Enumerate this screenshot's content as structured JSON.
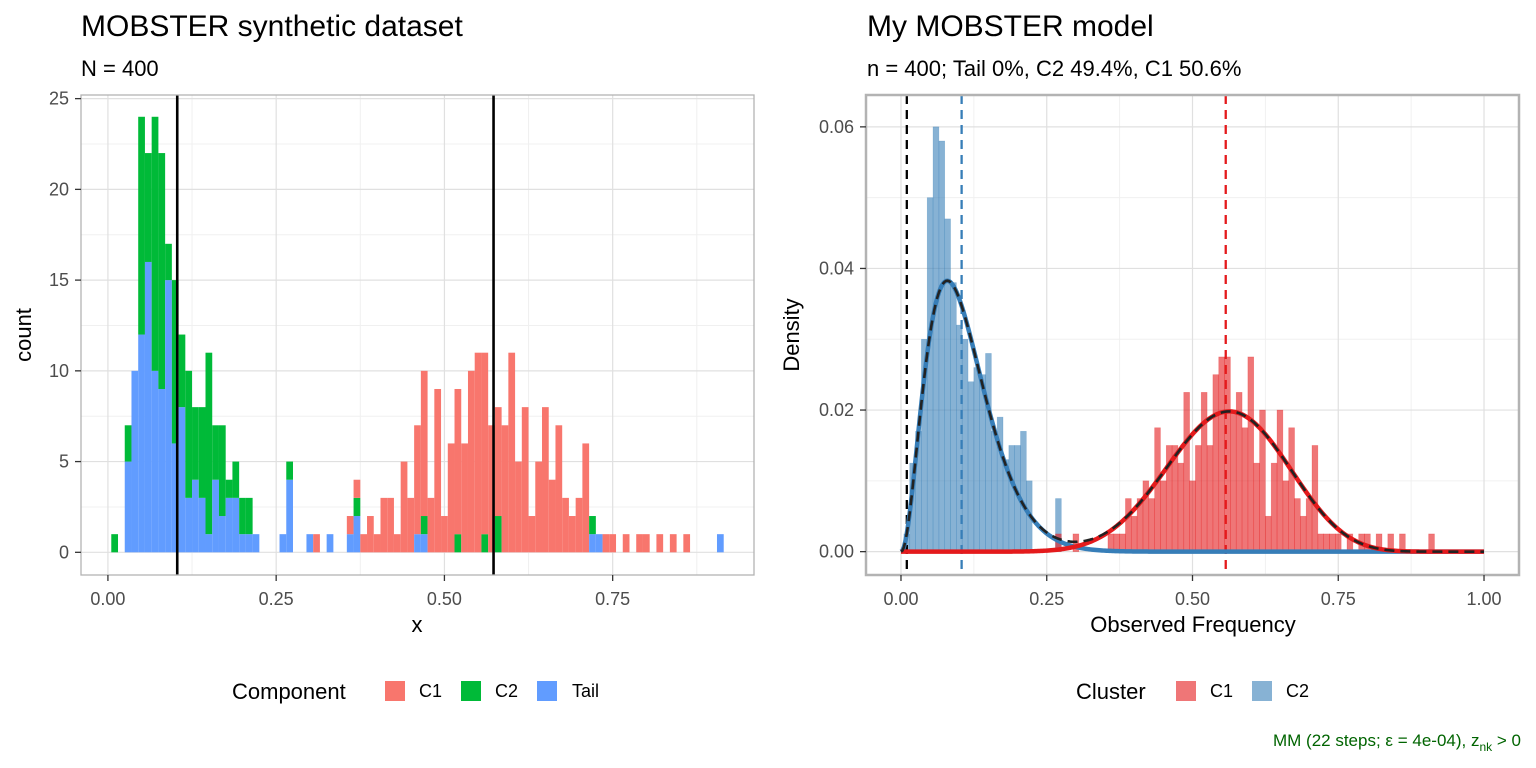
{
  "chart_data": [
    {
      "type": "bar",
      "title": "MOBSTER synthetic dataset",
      "subtitle": "N = 400",
      "xlabel": "x",
      "ylabel": "count",
      "xlim": [
        -0.04,
        0.96
      ],
      "ylim": [
        -1.25,
        25.2
      ],
      "x_ticks": [
        0,
        0.25,
        0.5,
        0.75
      ],
      "x_tick_labels": [
        "0.00",
        "0.25",
        "0.50",
        "0.75"
      ],
      "y_ticks": [
        0,
        5,
        10,
        15,
        20,
        25
      ],
      "y_tick_labels": [
        "0",
        "5",
        "10",
        "15",
        "20",
        "25"
      ],
      "grid": true,
      "stacked": true,
      "bin_width": 0.01,
      "legend": {
        "title": "Component",
        "position": "bottom",
        "entries": [
          {
            "label": "C1",
            "color": "#F8766D"
          },
          {
            "label": "C2",
            "color": "#00BA38"
          },
          {
            "label": "Tail",
            "color": "#619CFF"
          }
        ]
      },
      "vlines": [
        {
          "x": 0.103,
          "color": "#000000",
          "style": "solid"
        },
        {
          "x": 0.573,
          "color": "#000000",
          "style": "solid"
        }
      ],
      "bins_x": [
        0.01,
        0.03,
        0.04,
        0.05,
        0.06,
        0.07,
        0.08,
        0.09,
        0.1,
        0.11,
        0.12,
        0.13,
        0.14,
        0.15,
        0.16,
        0.17,
        0.18,
        0.19,
        0.2,
        0.21,
        0.22,
        0.26,
        0.27,
        0.3,
        0.31,
        0.33,
        0.36,
        0.37,
        0.38,
        0.39,
        0.4,
        0.41,
        0.42,
        0.43,
        0.44,
        0.45,
        0.46,
        0.47,
        0.48,
        0.49,
        0.5,
        0.51,
        0.52,
        0.53,
        0.54,
        0.55,
        0.56,
        0.57,
        0.58,
        0.59,
        0.6,
        0.61,
        0.62,
        0.63,
        0.64,
        0.65,
        0.66,
        0.67,
        0.68,
        0.69,
        0.7,
        0.71,
        0.72,
        0.73,
        0.74,
        0.75,
        0.77,
        0.79,
        0.8,
        0.82,
        0.84,
        0.86,
        0.91
      ],
      "series": [
        {
          "name": "Tail",
          "color": "#619CFF",
          "values": [
            0,
            5,
            10,
            12,
            16,
            10,
            9,
            15,
            6,
            8,
            3,
            4,
            3,
            1,
            4,
            2,
            3,
            3,
            1,
            1,
            1,
            1,
            4,
            1,
            0,
            1,
            1,
            2,
            0,
            0,
            0,
            0,
            0,
            0,
            0,
            0,
            1,
            1,
            0,
            0,
            0,
            0,
            0,
            0,
            0,
            0,
            0,
            0,
            0,
            0,
            0,
            0,
            0,
            0,
            0,
            0,
            0,
            0,
            0,
            0,
            0,
            0,
            1,
            1,
            0,
            0,
            0,
            0,
            0,
            0,
            0,
            0,
            1
          ]
        },
        {
          "name": "C2",
          "color": "#00BA38",
          "values": [
            1,
            2,
            0,
            12,
            6,
            14,
            13,
            2,
            9,
            4,
            7,
            4,
            5,
            10,
            3,
            5,
            1,
            2,
            2,
            2,
            0,
            0,
            1,
            0,
            0,
            0,
            0,
            1,
            0,
            0,
            0,
            0,
            0,
            0,
            0,
            0,
            0,
            1,
            0,
            0,
            0,
            0,
            1,
            0,
            0,
            0,
            1,
            0,
            2,
            0,
            0,
            0,
            0,
            0,
            0,
            0,
            0,
            0,
            0,
            0,
            0,
            0,
            1,
            0,
            0,
            0,
            0,
            0,
            0,
            0,
            0,
            0,
            0
          ]
        },
        {
          "name": "C1",
          "color": "#F8766D",
          "values": [
            0,
            0,
            0,
            0,
            0,
            0,
            0,
            0,
            0,
            0,
            0,
            0,
            0,
            0,
            0,
            0,
            0,
            0,
            0,
            0,
            0,
            0,
            0,
            0,
            1,
            0,
            1,
            1,
            1,
            2,
            1,
            3,
            3,
            1,
            5,
            3,
            6,
            8,
            3,
            9,
            2,
            6,
            8,
            6,
            10,
            11,
            10,
            7,
            6,
            7,
            11,
            5,
            8,
            2,
            5,
            8,
            4,
            7,
            3,
            2,
            3,
            6,
            0,
            0,
            1,
            1,
            1,
            1,
            1,
            1,
            1,
            1,
            0
          ]
        }
      ]
    },
    {
      "type": "bar",
      "title": "My MOBSTER model",
      "subtitle": "n = 400; Tail 0%, C2 49.4%, C1 50.6%",
      "xlabel": "Observed Frequency",
      "ylabel": "Density",
      "xlim": [
        -0.06,
        1.06
      ],
      "ylim": [
        -0.0033,
        0.0645
      ],
      "x_ticks": [
        0,
        0.25,
        0.5,
        0.75,
        1
      ],
      "x_tick_labels": [
        "0.00",
        "0.25",
        "0.50",
        "0.75",
        "1.00"
      ],
      "y_ticks": [
        0,
        0.02,
        0.04,
        0.06
      ],
      "y_tick_labels": [
        "0.00",
        "0.02",
        "0.04",
        "0.06"
      ],
      "grid": true,
      "bin_width": 0.01,
      "legend": {
        "title": "Cluster",
        "position": "bottom",
        "entries": [
          {
            "label": "C1",
            "color": "#E41A1C"
          },
          {
            "label": "C2",
            "color": "#377EB8"
          }
        ]
      },
      "vlines": [
        {
          "x": 0.01,
          "color": "#000000",
          "style": "dashed"
        },
        {
          "x": 0.104,
          "color": "#377EB8",
          "style": "dashed"
        },
        {
          "x": 0.557,
          "color": "#E41A1C",
          "style": "dashed"
        }
      ],
      "bins": [
        {
          "name": "C2",
          "color": "#377EB8",
          "x": [
            0.01,
            0.02,
            0.03,
            0.04,
            0.05,
            0.06,
            0.07,
            0.08,
            0.09,
            0.1,
            0.11,
            0.12,
            0.13,
            0.14,
            0.15,
            0.16,
            0.17,
            0.18,
            0.19,
            0.2,
            0.21,
            0.22,
            0.27
          ],
          "values": [
            0.0025,
            0.0125,
            0.017,
            0.03,
            0.05,
            0.06,
            0.058,
            0.047,
            0.038,
            0.032,
            0.03,
            0.024,
            0.026,
            0.025,
            0.028,
            0.017,
            0.019,
            0.013,
            0.015,
            0.015,
            0.017,
            0.01,
            0.0075
          ]
        },
        {
          "name": "C1",
          "color": "#E41A1C",
          "x": [
            0.27,
            0.3,
            0.36,
            0.37,
            0.38,
            0.39,
            0.4,
            0.41,
            0.42,
            0.43,
            0.44,
            0.45,
            0.46,
            0.47,
            0.48,
            0.49,
            0.5,
            0.51,
            0.52,
            0.53,
            0.54,
            0.55,
            0.56,
            0.57,
            0.58,
            0.59,
            0.6,
            0.61,
            0.62,
            0.63,
            0.64,
            0.65,
            0.66,
            0.67,
            0.68,
            0.69,
            0.7,
            0.71,
            0.72,
            0.73,
            0.74,
            0.75,
            0.77,
            0.79,
            0.8,
            0.82,
            0.84,
            0.86,
            0.91
          ],
          "values": [
            0.0025,
            0.0025,
            0.0025,
            0.0025,
            0.0025,
            0.0075,
            0.005,
            0.0075,
            0.01,
            0.0075,
            0.0175,
            0.01,
            0.015,
            0.015,
            0.0125,
            0.0225,
            0.01,
            0.015,
            0.0225,
            0.015,
            0.025,
            0.0275,
            0.0275,
            0.02,
            0.0225,
            0.0175,
            0.0275,
            0.0125,
            0.02,
            0.005,
            0.0125,
            0.02,
            0.01,
            0.0175,
            0.0075,
            0.005,
            0.0075,
            0.015,
            0.0025,
            0.0025,
            0.0025,
            0.0025,
            0.0025,
            0.0025,
            0.0025,
            0.0025,
            0.0025,
            0.0025,
            0.0025
          ]
        }
      ],
      "curves": [
        {
          "name": "C2",
          "color": "#377EB8",
          "style": "solid",
          "shape": "beta",
          "a": 3.2,
          "b": 26.5,
          "weight": 0.494
        },
        {
          "name": "C1",
          "color": "#E41A1C",
          "style": "solid",
          "shape": "beta",
          "a": 13.5,
          "b": 10.7,
          "weight": 0.506
        },
        {
          "name": "mixture",
          "color": "#222222",
          "style": "dashed",
          "shape": "sum"
        }
      ],
      "caption": "MM (22 steps; ε = 4e-04), z",
      "caption_subscript": "nk",
      "caption_suffix": " > 0"
    }
  ]
}
